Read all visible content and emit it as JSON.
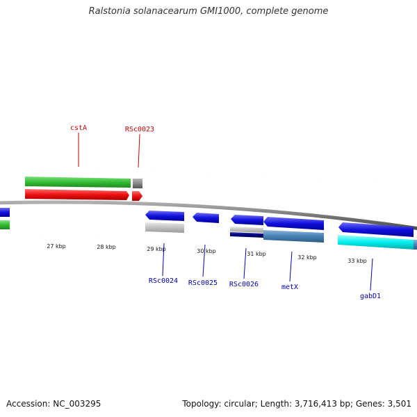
{
  "title": "Ralstonia solanacearum GMI1000, complete genome",
  "footer": {
    "accession": "Accession: NC_003295",
    "summary": "Topology: circular; Length: 3,716,413 bp; Genes: 3,501"
  },
  "scale_labels": [
    "27 kbp",
    "28 kbp",
    "29 kbp",
    "30 kbp",
    "31 kbp",
    "32 kbp",
    "33 kbp"
  ],
  "labels": {
    "forward": [
      {
        "text": "cstA",
        "color": "#cc0000"
      },
      {
        "text": "RSc0023",
        "color": "#cc0000"
      }
    ],
    "reverse": [
      {
        "text": "RSc0024",
        "color": "#0000aa"
      },
      {
        "text": "RSc0025",
        "color": "#0000aa"
      },
      {
        "text": "RSc0026",
        "color": "#0000aa"
      },
      {
        "text": "metX",
        "color": "#0000aa"
      },
      {
        "text": "gabD1",
        "color": "#0000aa"
      }
    ]
  },
  "colors": {
    "backbone": "#808080",
    "tick": "#228B22",
    "cog_green": "#33bb33",
    "cds_red": "#ee1111",
    "cds_blue": "#1111dd",
    "gray": "#888888",
    "lightgray": "#c0c0c0",
    "navy": "#000080",
    "steelblue": "#4682b4",
    "cyan": "#00eeee"
  }
}
